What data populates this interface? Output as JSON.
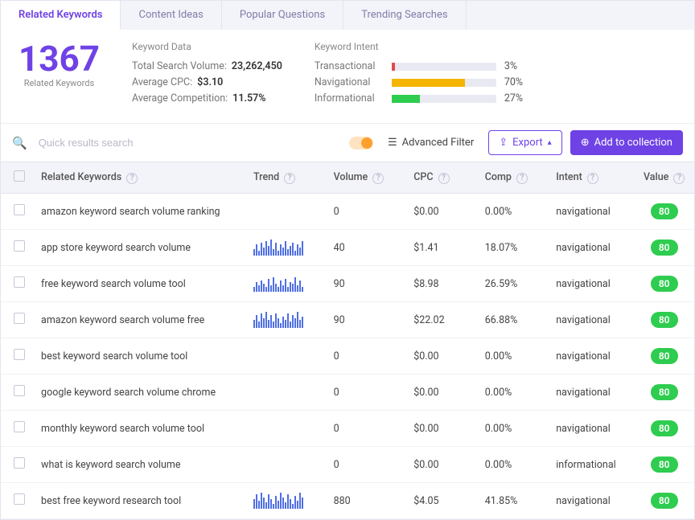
{
  "tabs": [
    "Related Keywords",
    "Content Ideas",
    "Popular Questions",
    "Trending Searches"
  ],
  "active_tab": 0,
  "summary": {
    "big_number": "1367",
    "big_sub": "Related Keywords",
    "data_title": "Keyword Data",
    "total_label": "Total Search Volume:",
    "total_value": "23,262,450",
    "cpc_label": "Average CPC:",
    "cpc_value": "$3.10",
    "comp_label": "Average Competition:",
    "comp_value": "11.57%",
    "intent_title": "Keyword Intent",
    "intents": [
      {
        "label": "Transactional",
        "pct": "3%",
        "width": 3,
        "color": "#e44a4a"
      },
      {
        "label": "Navigational",
        "pct": "70%",
        "width": 70,
        "color": "#f4b400"
      },
      {
        "label": "Informational",
        "pct": "27%",
        "width": 27,
        "color": "#2ecc4f"
      }
    ]
  },
  "toolbar": {
    "search_placeholder": "Quick results search",
    "adv_filter": "Advanced Filter",
    "export": "Export",
    "add_collection": "Add to collection"
  },
  "columns": [
    "Related Keywords",
    "Trend",
    "Volume",
    "CPC",
    "Comp",
    "Intent",
    "Value"
  ],
  "rows": [
    {
      "kw": "amazon keyword search volume ranking",
      "trend": [],
      "vol": "0",
      "cpc": "$0.00",
      "comp": "0.00%",
      "intent": "navigational",
      "value": "80"
    },
    {
      "kw": "app store keyword search volume",
      "trend": [
        4,
        7,
        3,
        8,
        5,
        9,
        6,
        10,
        4,
        8,
        3,
        7,
        5,
        9,
        4,
        6,
        8,
        3,
        7,
        5,
        9
      ],
      "vol": "40",
      "cpc": "$1.41",
      "comp": "18.07%",
      "intent": "navigational",
      "value": "80"
    },
    {
      "kw": "free keyword search volume tool",
      "trend": [
        3,
        6,
        4,
        7,
        5,
        3,
        8,
        4,
        9,
        5,
        3,
        7,
        4,
        8,
        3,
        6,
        5,
        9,
        4,
        7,
        3
      ],
      "vol": "90",
      "cpc": "$8.98",
      "comp": "26.59%",
      "intent": "navigational",
      "value": "80"
    },
    {
      "kw": "amazon keyword search volume free",
      "trend": [
        5,
        8,
        4,
        9,
        6,
        10,
        5,
        8,
        4,
        9,
        6,
        3,
        7,
        5,
        9,
        4,
        8,
        6,
        10,
        5,
        7
      ],
      "vol": "90",
      "cpc": "$22.02",
      "comp": "66.88%",
      "intent": "navigational",
      "value": "80"
    },
    {
      "kw": "best keyword search volume tool",
      "trend": [],
      "vol": "0",
      "cpc": "$0.00",
      "comp": "0.00%",
      "intent": "navigational",
      "value": "80"
    },
    {
      "kw": "google keyword search volume chrome",
      "trend": [],
      "vol": "0",
      "cpc": "$0.00",
      "comp": "0.00%",
      "intent": "navigational",
      "value": "80"
    },
    {
      "kw": "monthly keyword search volume tool",
      "trend": [],
      "vol": "0",
      "cpc": "$0.00",
      "comp": "0.00%",
      "intent": "navigational",
      "value": "80"
    },
    {
      "kw": "what is keyword search volume",
      "trend": [],
      "vol": "0",
      "cpc": "$0.00",
      "comp": "0.00%",
      "intent": "informational",
      "value": "80"
    },
    {
      "kw": "best free keyword research tool",
      "trend": [
        6,
        9,
        5,
        10,
        7,
        4,
        9,
        6,
        3,
        8,
        5,
        10,
        7,
        4,
        9,
        6,
        3,
        8,
        5,
        10,
        7
      ],
      "vol": "880",
      "cpc": "$4.05",
      "comp": "41.85%",
      "intent": "navigational",
      "value": "80"
    }
  ]
}
